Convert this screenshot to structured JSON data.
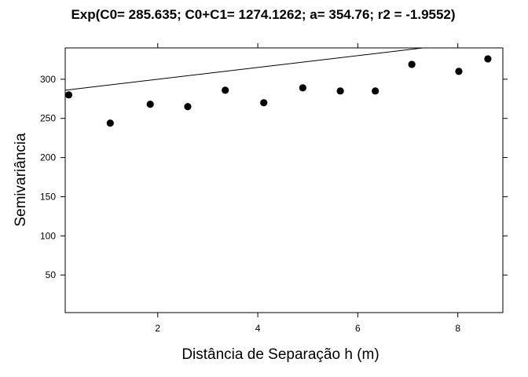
{
  "chart_data": {
    "type": "scatter",
    "title": "Exp(C0= 285.635; C0+C1= 1274.1262; a= 354.76; r2 = -1.9552)",
    "xlabel": "Distância de Separação h (m)",
    "ylabel": "Semivariância",
    "xlim": [
      0.15,
      8.9
    ],
    "ylim": [
      2,
      340
    ],
    "xticks": [
      2,
      4,
      6,
      8
    ],
    "yticks": [
      50,
      100,
      150,
      200,
      250,
      300
    ],
    "grid": false,
    "series": [
      {
        "points": [
          {
            "x": 0.22,
            "y": 280
          },
          {
            "x": 1.05,
            "y": 244
          },
          {
            "x": 1.85,
            "y": 268
          },
          {
            "x": 2.6,
            "y": 265
          },
          {
            "x": 3.35,
            "y": 286
          },
          {
            "x": 4.12,
            "y": 270
          },
          {
            "x": 4.9,
            "y": 289
          },
          {
            "x": 5.65,
            "y": 285
          },
          {
            "x": 6.35,
            "y": 285
          },
          {
            "x": 7.08,
            "y": 319
          },
          {
            "x": 8.02,
            "y": 310
          },
          {
            "x": 8.6,
            "y": 326
          }
        ]
      }
    ],
    "model_line": [
      {
        "x": 0.15,
        "y": 286
      },
      {
        "x": 7.3,
        "y": 340
      }
    ]
  }
}
